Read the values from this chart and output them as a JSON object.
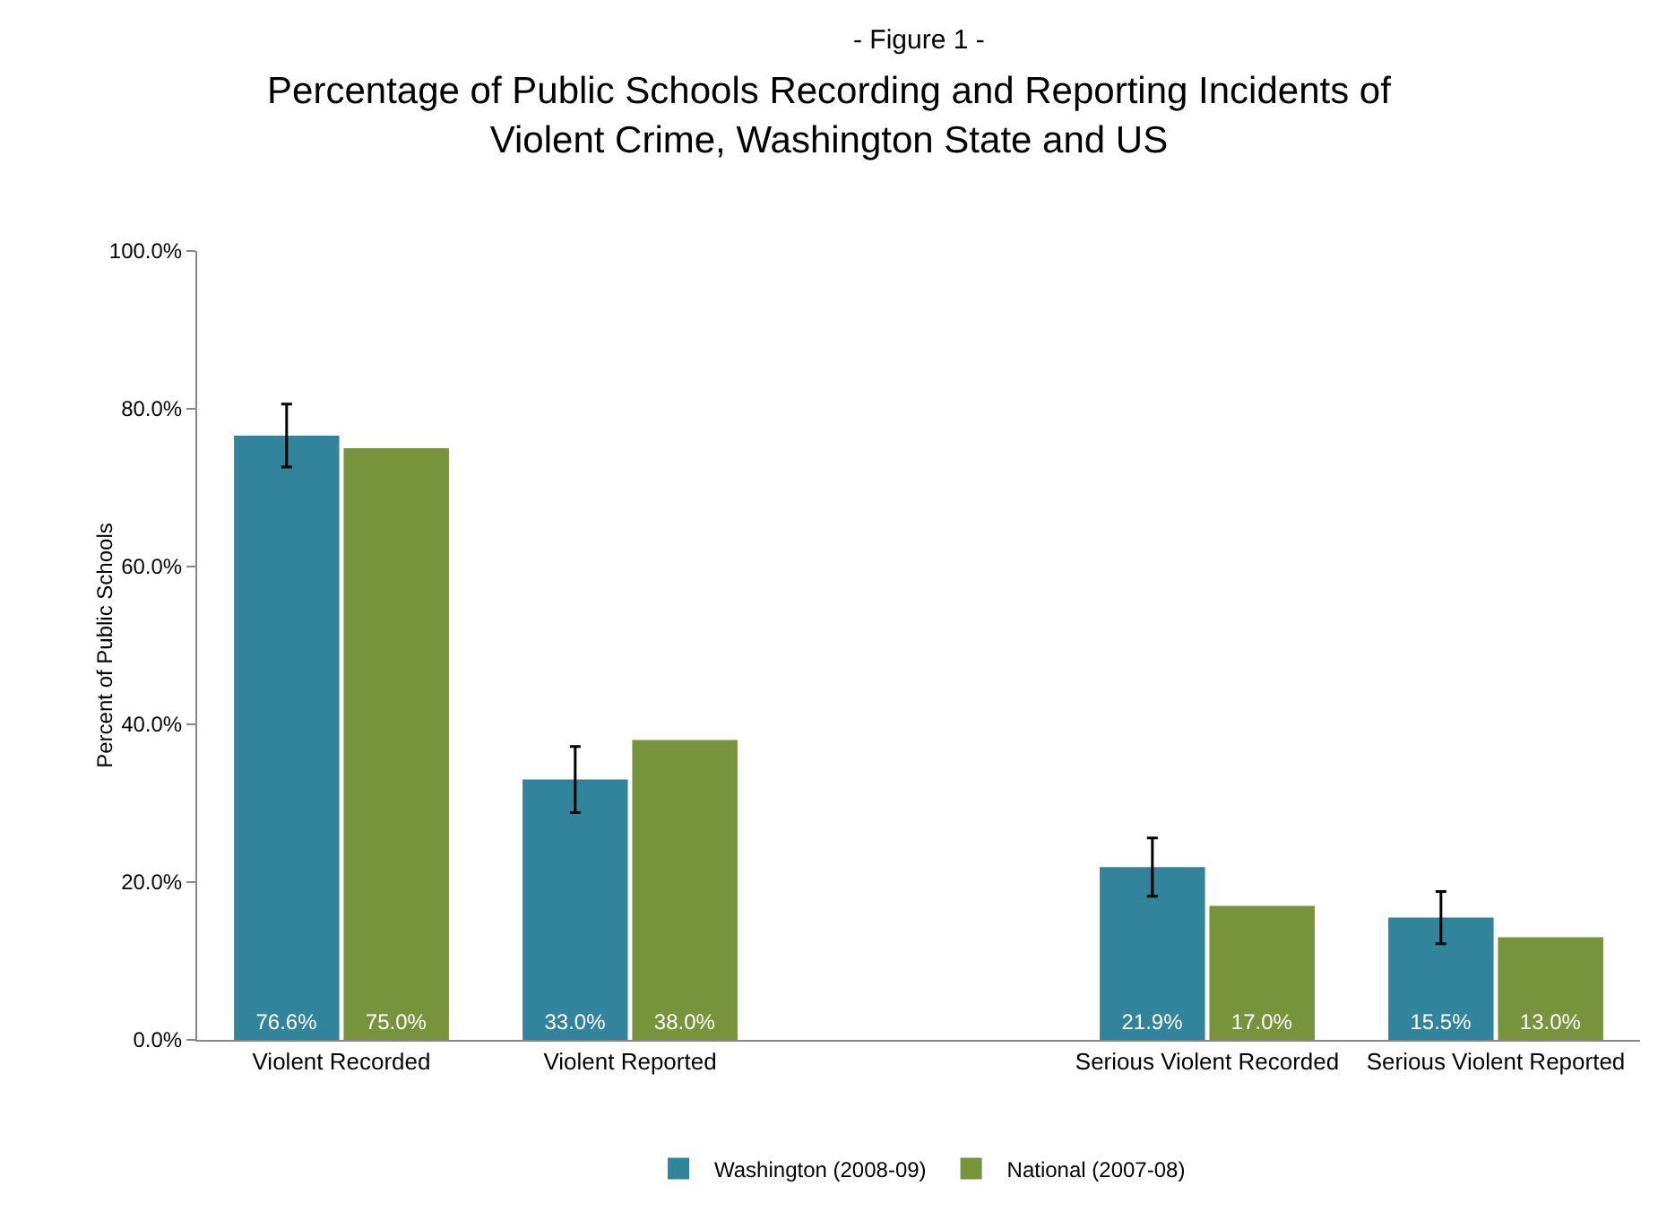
{
  "chart_data": {
    "type": "bar",
    "subtitle": "- Figure 1 -",
    "title": "Percentage of Public Schools Recording and Reporting Incidents of Violent Crime, Washington State and US",
    "ylabel": "Percent of Public Schools",
    "categories": [
      "Violent Recorded",
      "Violent Reported",
      null,
      "Serious Violent Recorded",
      "Serious Violent Reported"
    ],
    "series": [
      {
        "name": "Washington (2008-09)",
        "color": "#31849b",
        "values": [
          76.6,
          33.0,
          null,
          21.9,
          15.5
        ],
        "errors": [
          4,
          4.2,
          null,
          3.7,
          3.3
        ],
        "value_labels": [
          "76.6%",
          "33.0%",
          null,
          "21.9%",
          "15.5%"
        ]
      },
      {
        "name": "National (2007-08)",
        "color": "#77933c",
        "values": [
          75.0,
          38.0,
          null,
          17.0,
          13.0
        ],
        "value_labels": [
          "75.0%",
          "38.0%",
          null,
          "17.0%",
          "13.0%"
        ]
      }
    ],
    "ylim": [
      0,
      100
    ],
    "yticks": [
      {
        "value": 0,
        "label": "0.0%"
      },
      {
        "value": 20,
        "label": "20.0%"
      },
      {
        "value": 40,
        "label": "40.0%"
      },
      {
        "value": 60,
        "label": "60.0%"
      },
      {
        "value": 80,
        "label": "80.0%"
      },
      {
        "value": 100,
        "label": "100.0%"
      }
    ],
    "grid": false,
    "legend": "bottom"
  }
}
